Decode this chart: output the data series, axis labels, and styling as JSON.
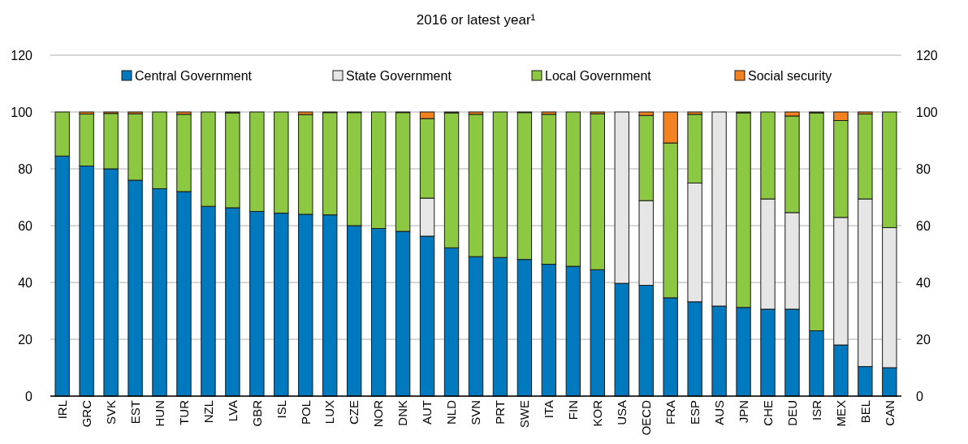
{
  "chart_data": {
    "type": "bar",
    "title": "2016 or latest year¹",
    "stacked": true,
    "grid": "y",
    "legend": "top",
    "ylim": [
      0,
      120
    ],
    "yticks": [
      0,
      20,
      40,
      60,
      80,
      100,
      120
    ],
    "y2lim": [
      0,
      120
    ],
    "y2ticks": [
      0,
      20,
      40,
      60,
      80,
      100,
      120
    ],
    "categories": [
      "IRL",
      "GRC",
      "SVK",
      "EST",
      "HUN",
      "TUR",
      "NZL",
      "LVA",
      "GBR",
      "ISL",
      "POL",
      "LUX",
      "CZE",
      "NOR",
      "DNK",
      "AUT",
      "NLD",
      "SVN",
      "PRT",
      "SWE",
      "ITA",
      "FIN",
      "KOR",
      "USA",
      "OECD",
      "FRA",
      "ESP",
      "AUS",
      "JPN",
      "CHE",
      "DEU",
      "ISR",
      "MEX",
      "BEL",
      "CAN"
    ],
    "series": [
      {
        "name": "Central Government",
        "color": "#0079bf",
        "values": [
          84.5,
          81,
          80,
          76,
          73,
          72,
          66.8,
          66.3,
          65,
          64.4,
          64,
          63.8,
          60,
          59,
          58,
          56.3,
          52.2,
          49.1,
          48.8,
          48.1,
          46.4,
          45.7,
          44.5,
          39.7,
          39,
          34.6,
          33.2,
          31.7,
          31.2,
          30.6,
          30.6,
          23,
          18,
          10.4,
          10
        ]
      },
      {
        "name": "State Government",
        "color": "#e6e6e6",
        "values": [
          0,
          0,
          0,
          0,
          0,
          0,
          0,
          0,
          0,
          0,
          0,
          0,
          0,
          0,
          0,
          13.4,
          0,
          0,
          0,
          0,
          0,
          0,
          0,
          60.3,
          29.8,
          0,
          41.8,
          68.3,
          0,
          38.8,
          34,
          0,
          44.9,
          59,
          49.3
        ]
      },
      {
        "name": "Local Government",
        "color": "#8cc841",
        "values": [
          15.5,
          18.3,
          19.5,
          23.4,
          27,
          27.2,
          33.2,
          33.4,
          35,
          35.6,
          35.1,
          36,
          39.8,
          41,
          41.8,
          28,
          47.5,
          50.1,
          51.2,
          51.7,
          52.8,
          54.3,
          54.9,
          0,
          30,
          54.5,
          24.2,
          0,
          68.5,
          30.6,
          34,
          76.7,
          34.1,
          29.9,
          40.7
        ]
      },
      {
        "name": "Social security",
        "color": "#f58220",
        "values": [
          0,
          0.7,
          0.5,
          0.6,
          0,
          0.8,
          0,
          0.3,
          0,
          0,
          0.9,
          0.2,
          0.2,
          0,
          0.2,
          2.3,
          0.3,
          0.8,
          0,
          0.2,
          0.8,
          0,
          0.6,
          0,
          1.2,
          10.9,
          0.8,
          0,
          0.3,
          0,
          1.4,
          0.3,
          3,
          0.7,
          0
        ]
      }
    ]
  }
}
